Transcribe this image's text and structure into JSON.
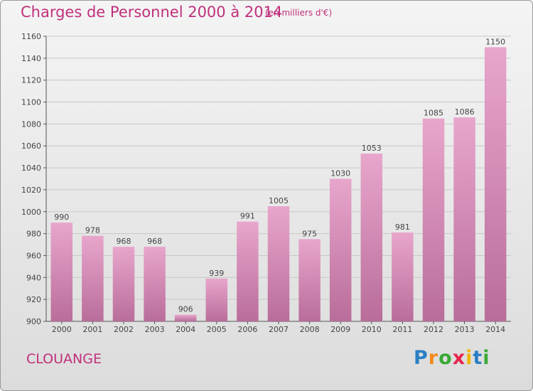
{
  "title": "Charges de Personnel 2000 à 2014",
  "subtitle": "(en milliers d'€)",
  "commune": "CLOUANGE",
  "logo": "Proxiti",
  "colors": {
    "bar": "#e8a6cc",
    "bar_dark": "#b96d9a",
    "title": "#c0307a",
    "grid": "#c8c8c8"
  },
  "chart_data": {
    "type": "bar",
    "categories": [
      "2000",
      "2001",
      "2002",
      "2003",
      "2004",
      "2005",
      "2006",
      "2007",
      "2008",
      "2009",
      "2010",
      "2011",
      "2012",
      "2013",
      "2014"
    ],
    "values": [
      990,
      978,
      968,
      968,
      906,
      939,
      991,
      1005,
      975,
      1030,
      1053,
      981,
      1085,
      1086,
      1150
    ],
    "yticks": [
      900,
      920,
      940,
      960,
      980,
      1000,
      1020,
      1040,
      1060,
      1080,
      1100,
      1120,
      1140,
      1160
    ],
    "ylim": [
      900,
      1160
    ],
    "grid": true
  }
}
